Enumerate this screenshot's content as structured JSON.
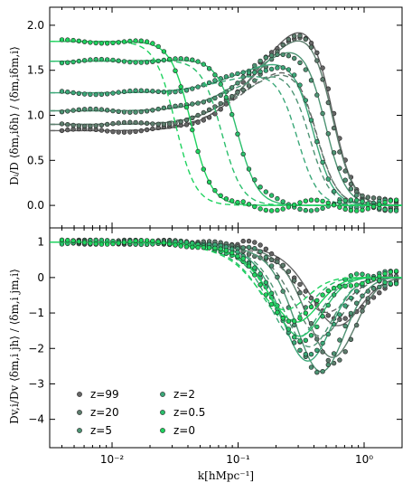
{
  "chart_data": {
    "type": "line",
    "x_scale": "log",
    "xlim": [
      0.0032,
      2.0
    ],
    "xlabel": "k[hMpc⁻¹]",
    "x_tick_labels": [
      "10⁻²",
      "10⁻¹",
      "10⁰"
    ],
    "x_tick_values": [
      0.01,
      0.1,
      1.0
    ],
    "panels": [
      {
        "id": "top",
        "ylabel": "Dᵢ/D ⟨δm,iδh⟩ / ⟨δm,iδm,i⟩",
        "ylim": [
          -0.25,
          2.2
        ],
        "y_ticks": [
          0.0,
          0.5,
          1.0,
          1.5,
          2.0
        ],
        "y_tick_labels": [
          "0.0",
          "0.5",
          "1.0",
          "1.5",
          "2.0"
        ],
        "series": [
          {
            "name": "z=99",
            "color": "#666666",
            "plateau": 0.83,
            "peak": 2.03,
            "k_peak": 0.4
          },
          {
            "name": "z=20",
            "color": "#5d7d6d",
            "plateau": 0.9,
            "peak": 1.93,
            "k_peak": 0.4
          },
          {
            "name": "z=5",
            "color": "#4e9474",
            "plateau": 1.05,
            "peak": 1.78,
            "k_peak": 0.35
          },
          {
            "name": "z=2",
            "color": "#3ca879",
            "plateau": 1.25,
            "peak": 1.62,
            "k_peak": 0.28
          },
          {
            "name": "z=0.5",
            "color": "#2bbf6c",
            "plateau": 1.6,
            "peak": 1.62,
            "k_peak": 0.07
          },
          {
            "name": "z=0",
            "color": "#1fd35f",
            "plateau": 1.82,
            "peak": 1.82,
            "k_peak": 0.03
          }
        ]
      },
      {
        "id": "bottom",
        "ylabel": "Dv,i/Dv ⟨δm,i jh⟩ / ⟨δm,i jm,i⟩",
        "ylim": [
          -4.8,
          1.4
        ],
        "y_ticks": [
          -4,
          -3,
          -2,
          -1,
          0,
          1
        ],
        "y_tick_labels": [
          "−4",
          "−3",
          "−2",
          "−1",
          "0",
          "1"
        ],
        "series": [
          {
            "name": "z=99",
            "color": "#666666",
            "start": 1.0,
            "min": -1.5,
            "k_min": 0.6
          },
          {
            "name": "z=20",
            "color": "#5d7d6d",
            "start": 1.0,
            "min": -2.4,
            "k_min": 0.55
          },
          {
            "name": "z=5",
            "color": "#4e9474",
            "start": 1.0,
            "min": -2.8,
            "k_min": 0.45
          },
          {
            "name": "z=2",
            "color": "#3ca879",
            "start": 1.0,
            "min": -2.5,
            "k_min": 0.35
          },
          {
            "name": "z=0.5",
            "color": "#2bbf6c",
            "start": 1.0,
            "min": -1.8,
            "k_min": 0.3
          },
          {
            "name": "z=0",
            "color": "#1fd35f",
            "start": 1.0,
            "min": -1.4,
            "k_min": 0.28
          }
        ]
      }
    ],
    "legend": {
      "placement": "lower-left",
      "entries": [
        "z=99",
        "z=20",
        "z=5",
        "z=2",
        "z=0.5",
        "z=0"
      ]
    }
  }
}
